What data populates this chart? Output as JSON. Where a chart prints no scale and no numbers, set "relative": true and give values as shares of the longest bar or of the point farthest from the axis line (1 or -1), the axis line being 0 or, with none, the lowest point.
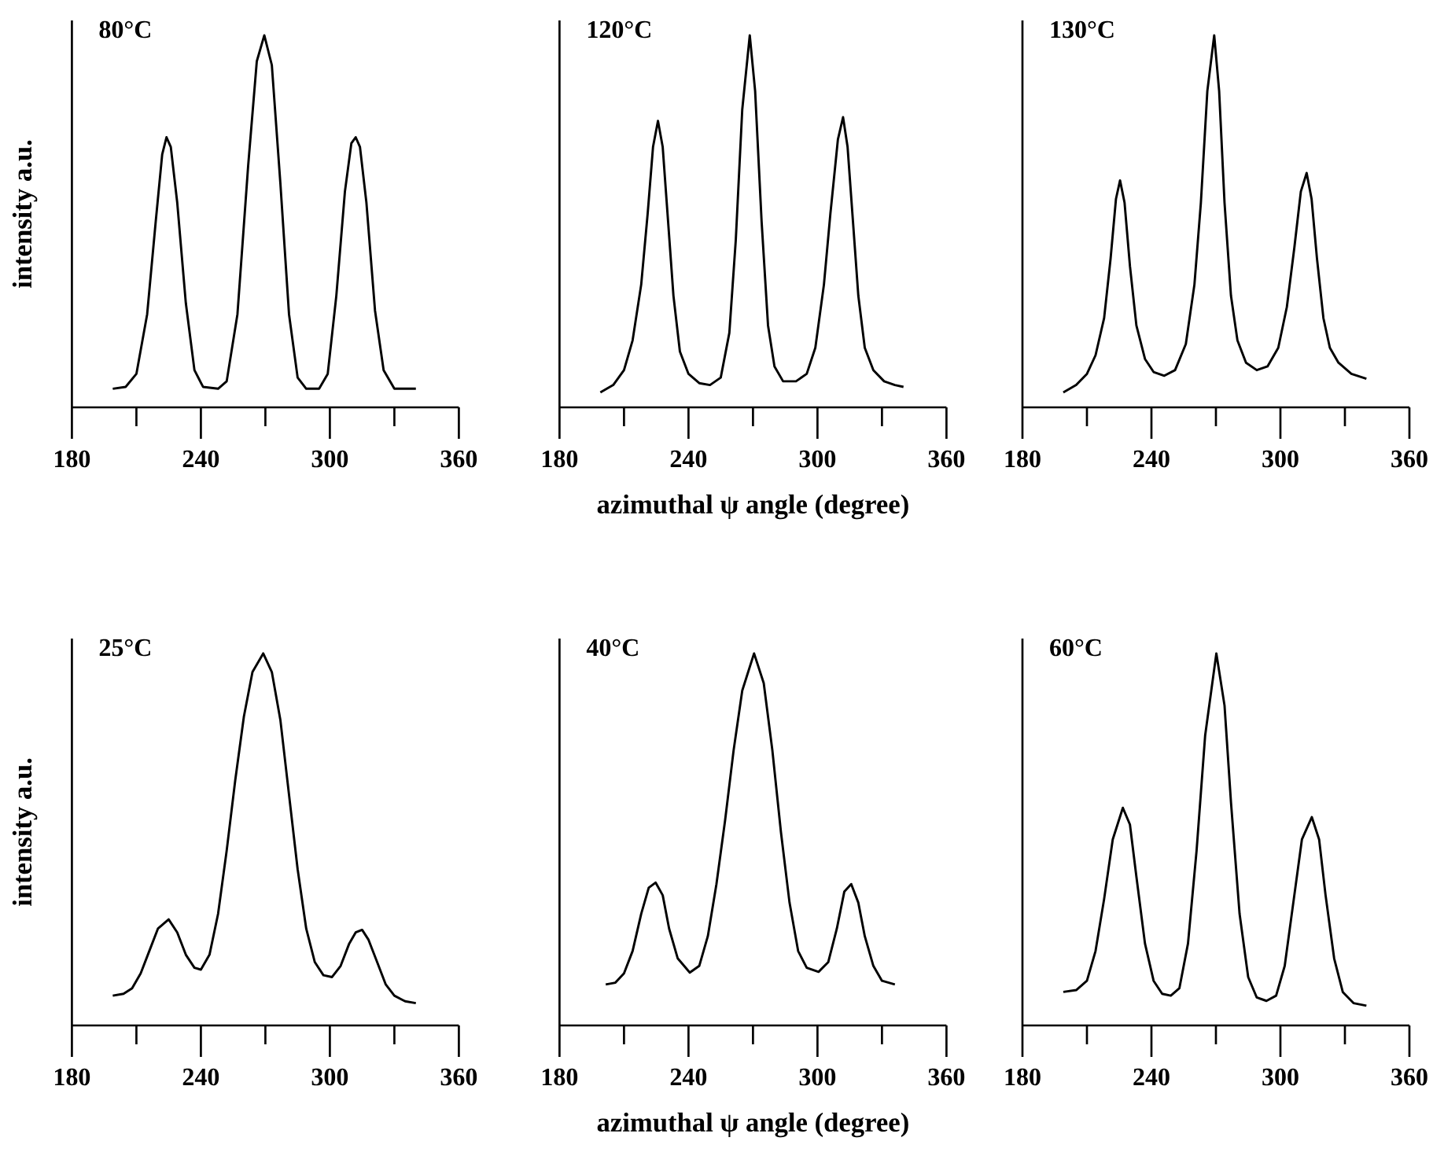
{
  "chart_data": [
    {
      "type": "line",
      "title": "80°C",
      "ylabel": "intensity a.u.",
      "relative": true,
      "color": "#000000",
      "xlim": [
        180,
        360
      ],
      "xticks": [
        180,
        {
          "value": 210,
          "label": null
        },
        240,
        {
          "value": 270,
          "label": null
        },
        300,
        {
          "value": 330,
          "label": null
        },
        360
      ],
      "x": [
        199,
        205,
        210,
        215,
        219,
        222,
        224,
        226,
        229,
        233,
        237,
        241,
        248,
        252,
        257,
        262,
        266,
        269.5,
        273,
        277,
        281,
        285,
        289,
        295,
        299,
        303,
        307,
        310,
        312,
        314,
        317,
        321,
        325,
        330,
        335,
        340
      ],
      "values": [
        0.05,
        0.055,
        0.09,
        0.25,
        0.5,
        0.68,
        0.726,
        0.7,
        0.55,
        0.28,
        0.1,
        0.055,
        0.05,
        0.07,
        0.25,
        0.65,
        0.93,
        1.0,
        0.92,
        0.6,
        0.25,
        0.08,
        0.05,
        0.05,
        0.09,
        0.3,
        0.58,
        0.71,
        0.726,
        0.7,
        0.55,
        0.26,
        0.1,
        0.05,
        0.05,
        0.05
      ]
    },
    {
      "type": "line",
      "title": "120°C",
      "xlabel": "azimuthal ψ angle (degree)",
      "relative": true,
      "color": "#000000",
      "xlim": [
        180,
        360
      ],
      "xticks": [
        180,
        {
          "value": 210,
          "label": null
        },
        240,
        {
          "value": 270,
          "label": null
        },
        300,
        {
          "value": 330,
          "label": null
        },
        360
      ],
      "x": [
        199,
        205,
        210,
        214,
        218,
        221,
        223.5,
        225.8,
        228,
        230.5,
        233,
        236,
        240,
        245,
        250,
        255,
        259,
        262,
        265,
        268.5,
        271,
        274,
        277,
        280,
        284,
        290,
        295,
        299,
        303,
        306,
        309.5,
        311.9,
        314,
        316.5,
        319,
        322,
        326,
        331,
        336,
        340
      ],
      "values": [
        0.04,
        0.06,
        0.1,
        0.18,
        0.33,
        0.52,
        0.7,
        0.77,
        0.7,
        0.5,
        0.3,
        0.15,
        0.09,
        0.065,
        0.06,
        0.08,
        0.2,
        0.45,
        0.8,
        1.0,
        0.85,
        0.5,
        0.22,
        0.11,
        0.07,
        0.07,
        0.09,
        0.16,
        0.33,
        0.52,
        0.72,
        0.78,
        0.7,
        0.5,
        0.3,
        0.16,
        0.1,
        0.07,
        0.06,
        0.055
      ]
    },
    {
      "type": "line",
      "title": "130°C",
      "relative": true,
      "color": "#000000",
      "xlim": [
        180,
        360
      ],
      "xticks": [
        180,
        {
          "value": 210,
          "label": null
        },
        240,
        {
          "value": 270,
          "label": null
        },
        300,
        {
          "value": 330,
          "label": null
        },
        360
      ],
      "x": [
        199,
        205,
        210,
        214,
        218,
        221,
        223.5,
        225.4,
        227.5,
        230,
        233,
        237,
        241,
        246,
        251,
        256,
        260,
        263,
        266,
        269.2,
        271.5,
        274,
        277,
        280,
        284,
        289,
        294,
        299,
        303,
        306.5,
        309.5,
        312.2,
        314.5,
        317,
        320,
        323,
        327,
        333,
        340
      ],
      "values": [
        0.04,
        0.06,
        0.09,
        0.14,
        0.24,
        0.4,
        0.56,
        0.61,
        0.55,
        0.38,
        0.22,
        0.13,
        0.095,
        0.085,
        0.1,
        0.17,
        0.33,
        0.55,
        0.85,
        1.0,
        0.85,
        0.55,
        0.3,
        0.18,
        0.12,
        0.1,
        0.11,
        0.16,
        0.27,
        0.43,
        0.58,
        0.63,
        0.56,
        0.4,
        0.24,
        0.16,
        0.12,
        0.09,
        0.077
      ]
    },
    {
      "type": "line",
      "title": "25°C",
      "ylabel": "intensity a.u.",
      "relative": true,
      "color": "#000000",
      "xlim": [
        180,
        360
      ],
      "xticks": [
        180,
        {
          "value": 210,
          "label": null
        },
        240,
        {
          "value": 270,
          "label": null
        },
        300,
        {
          "value": 330,
          "label": null
        },
        360
      ],
      "x": [
        199,
        204,
        208,
        212,
        216,
        220,
        225,
        229,
        233,
        237,
        240,
        244,
        248,
        252,
        256,
        260,
        264,
        269,
        273,
        277,
        281,
        285,
        289,
        293,
        297,
        301,
        305,
        309,
        312,
        315,
        318,
        322,
        326,
        330,
        335,
        340
      ],
      "values": [
        0.08,
        0.085,
        0.1,
        0.14,
        0.2,
        0.26,
        0.285,
        0.25,
        0.19,
        0.155,
        0.15,
        0.19,
        0.3,
        0.47,
        0.66,
        0.83,
        0.95,
        1.0,
        0.95,
        0.82,
        0.62,
        0.42,
        0.26,
        0.17,
        0.135,
        0.13,
        0.16,
        0.22,
        0.25,
        0.257,
        0.23,
        0.17,
        0.11,
        0.08,
        0.065,
        0.06
      ]
    },
    {
      "type": "line",
      "title": "40°C",
      "xlabel": "azimuthal ψ angle (degree)",
      "relative": true,
      "color": "#000000",
      "xlim": [
        180,
        360
      ],
      "xticks": [
        180,
        {
          "value": 210,
          "label": null
        },
        240,
        {
          "value": 270,
          "label": null
        },
        300,
        {
          "value": 330,
          "label": null
        },
        360
      ],
      "x": [
        201.5,
        206,
        210,
        214,
        218,
        221.5,
        224.7,
        228,
        231,
        235,
        240.6,
        245,
        249,
        253,
        257,
        261,
        265,
        270.5,
        275,
        279,
        283,
        287,
        291,
        295,
        300.5,
        305,
        309,
        312.5,
        315.7,
        319,
        322,
        326,
        330,
        336
      ],
      "values": [
        0.11,
        0.115,
        0.14,
        0.2,
        0.3,
        0.37,
        0.384,
        0.35,
        0.26,
        0.18,
        0.142,
        0.16,
        0.24,
        0.38,
        0.55,
        0.74,
        0.9,
        1.0,
        0.92,
        0.74,
        0.52,
        0.33,
        0.2,
        0.155,
        0.144,
        0.17,
        0.26,
        0.36,
        0.38,
        0.33,
        0.24,
        0.16,
        0.12,
        0.11
      ]
    },
    {
      "type": "line",
      "title": "60°C",
      "relative": true,
      "color": "#000000",
      "xlim": [
        180,
        360
      ],
      "xticks": [
        180,
        {
          "value": 210,
          "label": null
        },
        240,
        {
          "value": 270,
          "label": null
        },
        300,
        {
          "value": 330,
          "label": null
        },
        360
      ],
      "x": [
        199,
        205,
        210,
        214,
        218,
        222,
        226.7,
        230,
        233,
        237,
        241,
        245,
        249,
        253,
        257,
        261,
        265,
        270.2,
        274,
        277,
        281,
        285,
        289,
        293.5,
        298,
        302,
        306,
        310,
        314.6,
        318,
        321,
        325,
        329,
        334,
        340
      ],
      "values": [
        0.09,
        0.095,
        0.12,
        0.2,
        0.34,
        0.5,
        0.585,
        0.54,
        0.4,
        0.22,
        0.12,
        0.085,
        0.08,
        0.1,
        0.22,
        0.47,
        0.78,
        1.0,
        0.86,
        0.6,
        0.3,
        0.13,
        0.075,
        0.066,
        0.08,
        0.16,
        0.33,
        0.5,
        0.56,
        0.5,
        0.35,
        0.18,
        0.09,
        0.06,
        0.053
      ]
    }
  ]
}
